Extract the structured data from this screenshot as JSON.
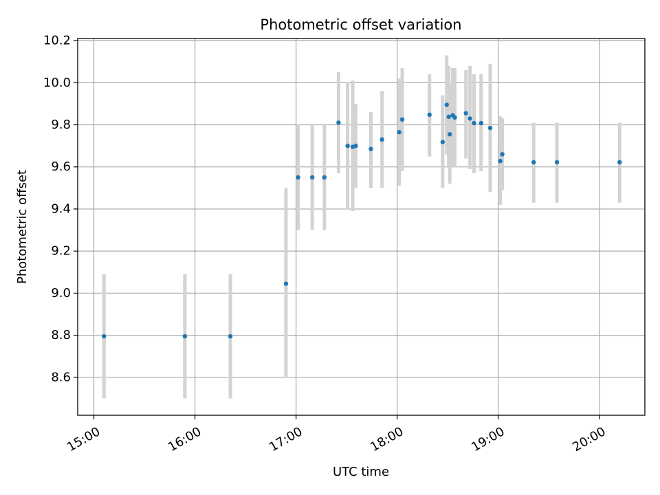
{
  "chart_data": {
    "type": "scatter",
    "title": "Photometric offset variation",
    "xlabel": "UTC time",
    "ylabel": "Photometric offset",
    "x_unit": "hours UTC",
    "xlim": [
      14.84,
      20.45
    ],
    "ylim": [
      8.42,
      10.21
    ],
    "grid": true,
    "marker_color": "#1f77b4",
    "errorbar_color": "#d3d3d3",
    "x_ticks": [
      {
        "value": 15,
        "label": "15:00"
      },
      {
        "value": 16,
        "label": "16:00"
      },
      {
        "value": 17,
        "label": "17:00"
      },
      {
        "value": 18,
        "label": "18:00"
      },
      {
        "value": 19,
        "label": "19:00"
      },
      {
        "value": 20,
        "label": "20:00"
      }
    ],
    "y_ticks": [
      {
        "value": 8.6,
        "label": "8.6"
      },
      {
        "value": 8.8,
        "label": "8.8"
      },
      {
        "value": 9.0,
        "label": "9.0"
      },
      {
        "value": 9.2,
        "label": "9.2"
      },
      {
        "value": 9.4,
        "label": "9.4"
      },
      {
        "value": 9.6,
        "label": "9.6"
      },
      {
        "value": 9.8,
        "label": "9.8"
      },
      {
        "value": 10.0,
        "label": "10.0"
      },
      {
        "value": 10.2,
        "label": "10.2"
      }
    ],
    "points": [
      {
        "x": 15.1,
        "y": 8.795,
        "err_low": 8.5,
        "err_high": 9.09
      },
      {
        "x": 15.9,
        "y": 8.795,
        "err_low": 8.5,
        "err_high": 9.09
      },
      {
        "x": 16.35,
        "y": 8.795,
        "err_low": 8.5,
        "err_high": 9.09
      },
      {
        "x": 16.9,
        "y": 9.045,
        "err_low": 8.6,
        "err_high": 9.5
      },
      {
        "x": 17.02,
        "y": 9.55,
        "err_low": 9.3,
        "err_high": 9.8
      },
      {
        "x": 17.16,
        "y": 9.55,
        "err_low": 9.3,
        "err_high": 9.8
      },
      {
        "x": 17.28,
        "y": 9.55,
        "err_low": 9.3,
        "err_high": 9.8
      },
      {
        "x": 17.42,
        "y": 9.81,
        "err_low": 9.57,
        "err_high": 10.05
      },
      {
        "x": 17.51,
        "y": 9.7,
        "err_low": 9.4,
        "err_high": 10.0
      },
      {
        "x": 17.56,
        "y": 9.695,
        "err_low": 9.39,
        "err_high": 10.01
      },
      {
        "x": 17.59,
        "y": 9.7,
        "err_low": 9.5,
        "err_high": 9.9
      },
      {
        "x": 17.74,
        "y": 9.685,
        "err_low": 9.5,
        "err_high": 9.86
      },
      {
        "x": 17.85,
        "y": 9.73,
        "err_low": 9.5,
        "err_high": 9.96
      },
      {
        "x": 18.02,
        "y": 9.765,
        "err_low": 9.51,
        "err_high": 10.02
      },
      {
        "x": 18.05,
        "y": 9.825,
        "err_low": 9.58,
        "err_high": 10.07
      },
      {
        "x": 18.32,
        "y": 9.848,
        "err_low": 9.65,
        "err_high": 10.04
      },
      {
        "x": 18.45,
        "y": 9.718,
        "err_low": 9.5,
        "err_high": 9.94
      },
      {
        "x": 18.49,
        "y": 9.895,
        "err_low": 9.66,
        "err_high": 10.13
      },
      {
        "x": 18.51,
        "y": 9.838,
        "err_low": 9.6,
        "err_high": 10.08
      },
      {
        "x": 18.52,
        "y": 9.755,
        "err_low": 9.52,
        "err_high": 9.99
      },
      {
        "x": 18.55,
        "y": 9.845,
        "err_low": 9.6,
        "err_high": 10.07
      },
      {
        "x": 18.57,
        "y": 9.835,
        "err_low": 9.6,
        "err_high": 10.07
      },
      {
        "x": 18.68,
        "y": 9.855,
        "err_low": 9.64,
        "err_high": 10.06
      },
      {
        "x": 18.72,
        "y": 9.83,
        "err_low": 9.59,
        "err_high": 10.08
      },
      {
        "x": 18.76,
        "y": 9.808,
        "err_low": 9.57,
        "err_high": 10.04
      },
      {
        "x": 18.83,
        "y": 9.808,
        "err_low": 9.58,
        "err_high": 10.04
      },
      {
        "x": 18.92,
        "y": 9.785,
        "err_low": 9.48,
        "err_high": 10.09
      },
      {
        "x": 19.02,
        "y": 9.628,
        "err_low": 9.42,
        "err_high": 9.84
      },
      {
        "x": 19.04,
        "y": 9.66,
        "err_low": 9.49,
        "err_high": 9.83
      },
      {
        "x": 19.35,
        "y": 9.622,
        "err_low": 9.43,
        "err_high": 9.81
      },
      {
        "x": 19.58,
        "y": 9.622,
        "err_low": 9.43,
        "err_high": 9.81
      },
      {
        "x": 20.2,
        "y": 9.622,
        "err_low": 9.43,
        "err_high": 9.81
      }
    ]
  }
}
